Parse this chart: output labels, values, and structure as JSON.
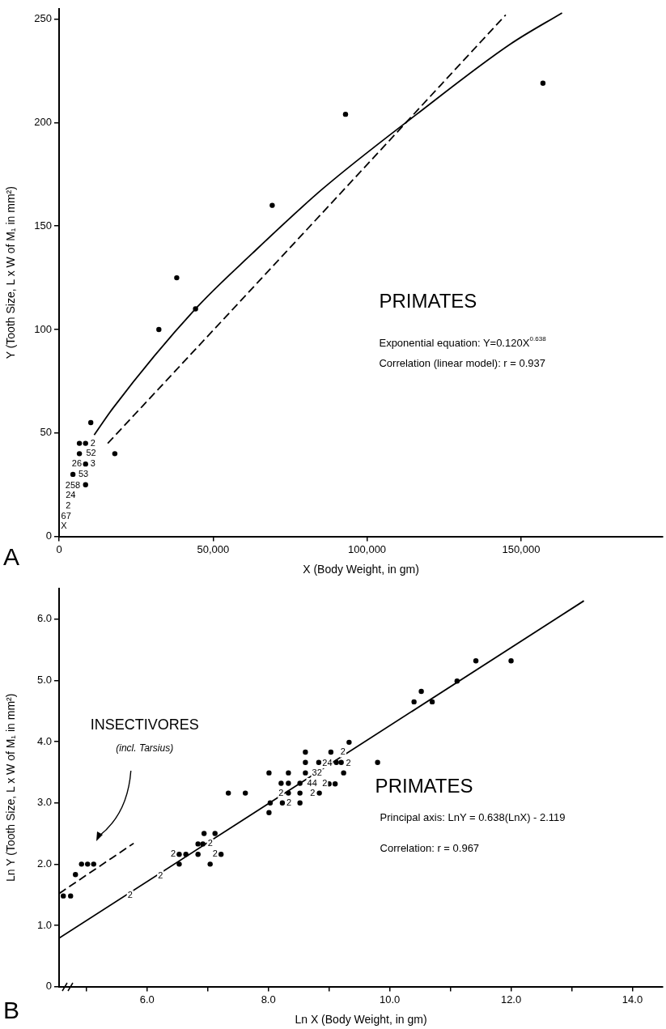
{
  "chart_data": [
    {
      "type": "scatter",
      "xlabel": "X (Body Weight, in gm)",
      "ylabel": "Y (Tooth Size, L x W of M₁ in mm²)",
      "xlim": [
        0,
        196000
      ],
      "ylim": [
        0,
        255
      ],
      "xticks": [
        0,
        {
          "value": 50000,
          "label": "50,000"
        },
        {
          "value": 100000,
          "label": "100,000"
        },
        {
          "value": 150000,
          "label": "150,000"
        }
      ],
      "yticks": [
        0,
        50,
        100,
        150,
        200,
        250
      ],
      "grid": false,
      "legend": false,
      "marker": "circle",
      "series": [
        {
          "type": "scatter",
          "color": "#000000",
          "x": [
            10300,
            18100,
            32400,
            38200,
            44300,
            69200,
            93000,
            157100,
            6600,
            8600,
            6600,
            8600,
            4500,
            8600
          ],
          "values": [
            55,
            40,
            100,
            125,
            110,
            160,
            204,
            219,
            45,
            45,
            40,
            35,
            30,
            25
          ]
        },
        {
          "type": "line",
          "color": "#000000",
          "marker": "none",
          "x": [
            11400,
            17500,
            44300,
            62900,
            85600,
            116100,
            146600,
            163300
          ],
          "values": [
            49,
            62,
            110,
            137,
            168,
            204,
            238,
            253
          ]
        },
        {
          "type": "line",
          "color": "#000000",
          "marker": "none",
          "line_style": "dashed",
          "x": [
            15800,
            27100,
            73400,
            145000
          ],
          "values": [
            45,
            63,
            137,
            252
          ]
        }
      ],
      "annotations": [
        "2",
        "52",
        "26",
        "3",
        "53",
        "258",
        "24",
        "2",
        "67",
        "X",
        "PRIMATES",
        "Exponential equation: Y=0.120X$^{0.638}$",
        "Correlation (linear model): r = 0.937",
        "A"
      ]
    },
    {
      "type": "scatter",
      "xlabel": "Ln X (Body Weight, in gm)",
      "ylabel": "Ln Y (Tooth Size, L x W of M₁ in mm²)",
      "xlim": [
        4.55,
        14.5
      ],
      "ylim": [
        0,
        6.5
      ],
      "xticks": [
        {
          "value": 5,
          "label": null
        },
        {
          "value": 6,
          "label": "6.0"
        },
        {
          "value": 7,
          "label": null
        },
        {
          "value": 8,
          "label": "8.0"
        },
        {
          "value": 9,
          "label": null
        },
        {
          "value": 10,
          "label": "10.0"
        },
        {
          "value": 11,
          "label": null
        },
        {
          "value": 12,
          "label": "12.0"
        },
        {
          "value": 13,
          "label": null
        },
        {
          "value": 14,
          "label": "14.0"
        }
      ],
      "yticks": [
        0,
        {
          "value": 1,
          "label": "1.0"
        },
        {
          "value": 2,
          "label": "2.0"
        },
        {
          "value": 3,
          "label": "3.0"
        },
        {
          "value": 4,
          "label": "4.0"
        },
        {
          "value": 5,
          "label": "5.0"
        },
        {
          "value": 6,
          "label": "6.0"
        }
      ],
      "grid": false,
      "legend": false,
      "marker": "circle",
      "series": [
        {
          "type": "scatter",
          "color": "#000000",
          "x": [
            6.53,
            6.53,
            6.64,
            6.84,
            6.84,
            6.92,
            6.94,
            7.12,
            7.04,
            7.22,
            7.34,
            7.62,
            8.01,
            8.03,
            8.01,
            8.21,
            8.33,
            8.33,
            8.23,
            8.33,
            8.52,
            8.52,
            8.52,
            8.61,
            8.61,
            8.61,
            8.83,
            8.84,
            9.03,
            9.0,
            9.1,
            9.12,
            9.2,
            9.24,
            9.33,
            9.8,
            10.4,
            10.52,
            10.7,
            11.11,
            11.42,
            12.0
          ],
          "values": [
            2.0,
            2.16,
            2.16,
            2.16,
            2.33,
            2.33,
            2.5,
            2.5,
            2.0,
            2.16,
            3.16,
            3.16,
            2.84,
            3.0,
            3.49,
            3.32,
            3.32,
            3.16,
            3.0,
            3.49,
            3.0,
            3.16,
            3.32,
            3.49,
            3.66,
            3.83,
            3.66,
            3.16,
            3.83,
            3.31,
            3.31,
            3.66,
            3.66,
            3.49,
            3.99,
            3.66,
            4.65,
            4.82,
            4.65,
            4.99,
            5.32,
            5.32
          ]
        },
        {
          "type": "scatter",
          "color": "#000000",
          "x": [
            4.62,
            4.74,
            4.82,
            4.92,
            5.02,
            5.12
          ],
          "values": [
            1.48,
            1.48,
            1.83,
            2.0,
            2.0,
            2.0
          ]
        },
        {
          "type": "line",
          "color": "#000000",
          "marker": "none",
          "x": [
            4.55,
            13.2
          ],
          "values": [
            0.79,
            6.3
          ]
        },
        {
          "type": "line",
          "color": "#000000",
          "marker": "none",
          "line_style": "dashed",
          "x": [
            4.55,
            5.78
          ],
          "values": [
            1.52,
            2.34
          ]
        }
      ],
      "annotations": [
        "2",
        "2",
        "2",
        "2",
        "2",
        "2",
        "2",
        "44",
        "32",
        "24",
        "2",
        "2",
        "2",
        "2",
        "INSECTIVORES",
        "(incl. Tarsius)",
        "PRIMATES",
        "Principal axis: LnY = 0.638(LnX) - 2.119",
        "Correlation: r = 0.967",
        "B"
      ]
    }
  ]
}
